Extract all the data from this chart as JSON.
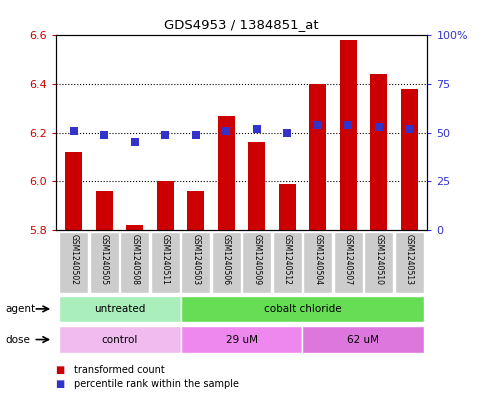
{
  "title": "GDS4953 / 1384851_at",
  "samples": [
    "GSM1240502",
    "GSM1240505",
    "GSM1240508",
    "GSM1240511",
    "GSM1240503",
    "GSM1240506",
    "GSM1240509",
    "GSM1240512",
    "GSM1240504",
    "GSM1240507",
    "GSM1240510",
    "GSM1240513"
  ],
  "transformed_count": [
    6.12,
    5.96,
    5.82,
    6.0,
    5.96,
    6.27,
    6.16,
    5.99,
    6.4,
    6.58,
    6.44,
    6.38
  ],
  "percentile_rank": [
    51,
    49,
    45,
    49,
    49,
    51,
    52,
    50,
    54,
    54,
    53,
    52
  ],
  "ylim_left": [
    5.8,
    6.6
  ],
  "ylim_right": [
    0,
    100
  ],
  "yticks_left": [
    5.8,
    6.0,
    6.2,
    6.4,
    6.6
  ],
  "yticks_right": [
    0,
    25,
    50,
    75,
    100
  ],
  "ytick_labels_right": [
    "0",
    "25",
    "50",
    "75",
    "100%"
  ],
  "bar_color": "#cc0000",
  "dot_color": "#3333cc",
  "grid_color": "#000000",
  "agent_groups": [
    {
      "label": "untreated",
      "start": 0,
      "end": 4,
      "color": "#aaeebb"
    },
    {
      "label": "cobalt chloride",
      "start": 4,
      "end": 12,
      "color": "#66dd55"
    }
  ],
  "dose_groups": [
    {
      "label": "control",
      "start": 0,
      "end": 4,
      "color": "#f0bbee"
    },
    {
      "label": "29 uM",
      "start": 4,
      "end": 8,
      "color": "#ee88ee"
    },
    {
      "label": "62 uM",
      "start": 8,
      "end": 12,
      "color": "#dd77dd"
    }
  ],
  "legend_items": [
    {
      "color": "#cc0000",
      "label": "transformed count"
    },
    {
      "color": "#3333cc",
      "label": "percentile rank within the sample"
    }
  ],
  "left_tick_color": "#cc0000",
  "right_tick_color": "#3333cc",
  "background_color": "#ffffff",
  "bar_width": 0.55,
  "dot_size": 28,
  "sample_box_color": "#cccccc",
  "sample_text_color": "#000000"
}
